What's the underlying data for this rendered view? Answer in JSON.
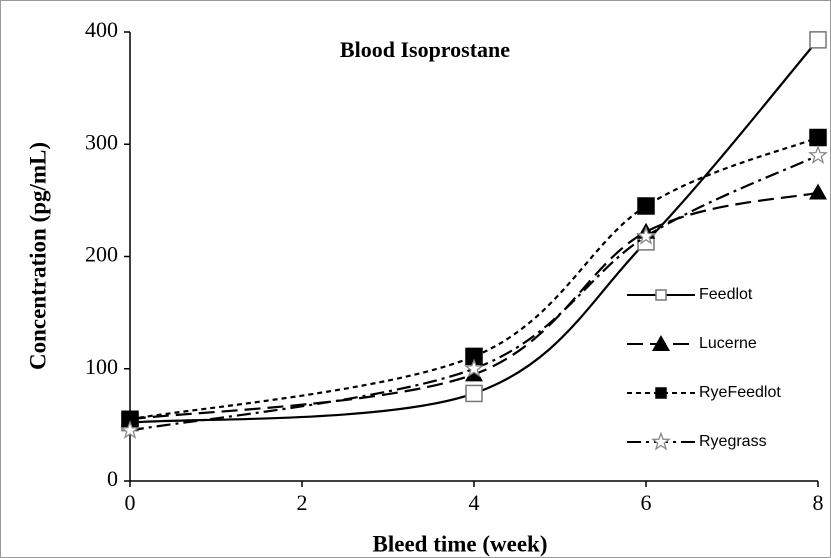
{
  "chart_data": {
    "type": "line",
    "title": "Blood Isoprostane",
    "x_label": "Bleed time (week)",
    "y_label": "Concentration (pg/mL)",
    "x": [
      0,
      4,
      6,
      8
    ],
    "series": [
      {
        "name": "Feedlot",
        "color": "#000000",
        "values": [
          52,
          78,
          213,
          393
        ]
      },
      {
        "name": "Lucerne",
        "color": "#000000",
        "values": [
          55,
          95,
          222,
          257
        ]
      },
      {
        "name": "RyeFeedlot",
        "color": "#000000",
        "values": [
          55,
          111,
          245,
          306
        ]
      },
      {
        "name": "Ryegrass",
        "color": "#000000",
        "values": [
          45,
          100,
          218,
          290
        ]
      }
    ],
    "xlim": [
      0,
      8
    ],
    "xticks": [
      0,
      2,
      4,
      6,
      8
    ],
    "ylim": [
      0,
      400
    ],
    "yticks": [
      0,
      100,
      200,
      300,
      400
    ],
    "grid": false
  }
}
